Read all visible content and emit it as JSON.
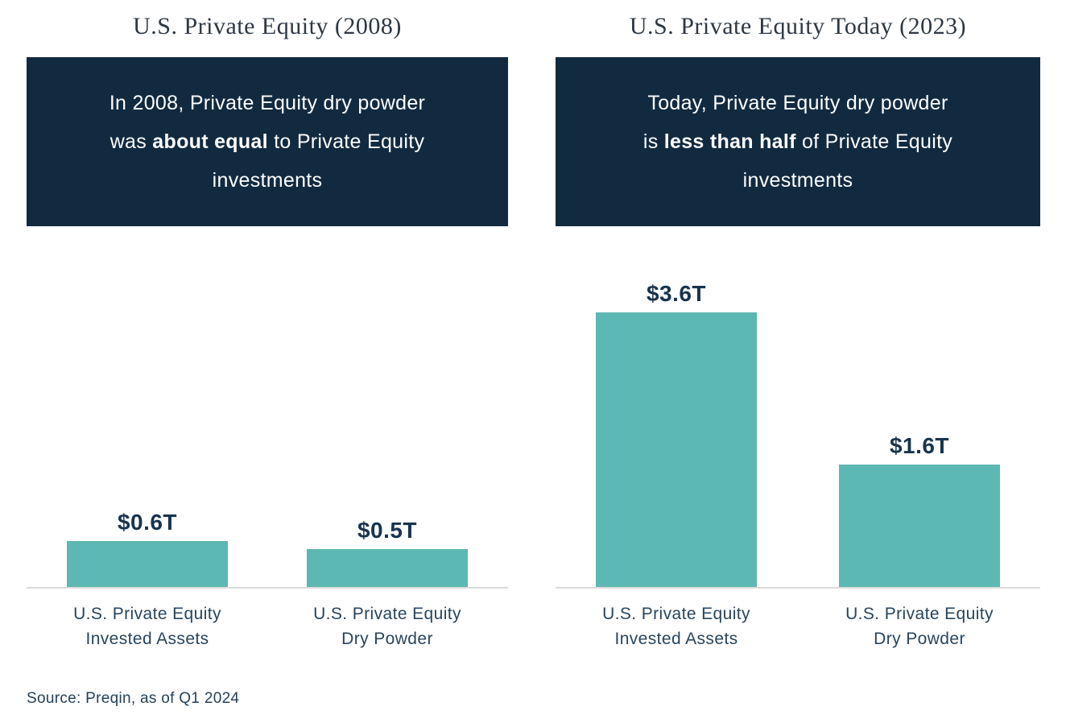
{
  "page": {
    "source_note": "Source: Preqin, as of Q1 2024"
  },
  "colors": {
    "callout_bg": "#112a40",
    "callout_text": "#ffffff",
    "bar_fill": "#5cb8b2",
    "title_text": "#2d3844",
    "value_label_text": "#18344e",
    "category_text": "#28455e",
    "source_text": "#24415b",
    "axis_line": "#dbdbdb"
  },
  "panels": [
    {
      "title": "U.S. Private Equity (2008)",
      "callout_lines": [
        [
          {
            "t": "In 2008, Private Equity dry powder"
          }
        ],
        [
          {
            "t": "was "
          },
          {
            "t": "about equal",
            "b": true
          },
          {
            "t": " to Private Equity"
          }
        ],
        [
          {
            "t": "investments"
          }
        ]
      ]
    },
    {
      "title": "U.S. Private Equity Today (2023)",
      "callout_lines": [
        [
          {
            "t": "Today, Private Equity dry powder"
          }
        ],
        [
          {
            "t": "is "
          },
          {
            "t": "less than half",
            "b": true
          },
          {
            "t": " of Private Equity"
          }
        ],
        [
          {
            "t": "investments"
          }
        ]
      ]
    }
  ],
  "chart_data": [
    {
      "type": "bar",
      "title": "U.S. Private Equity (2008)",
      "categories": [
        "U.S. Private Equity Invested Assets",
        "U.S. Private Equity Dry Powder"
      ],
      "category_lines": [
        [
          "U.S. Private Equity",
          "Invested Assets"
        ],
        [
          "U.S. Private Equity",
          "Dry Powder"
        ]
      ],
      "values": [
        0.6,
        0.5
      ],
      "value_labels": [
        "$0.6T",
        "$0.5T"
      ],
      "unit": "USD trillions",
      "ylim": [
        0,
        4
      ],
      "grid": false,
      "legend": "none",
      "annotation": "In 2008, Private Equity dry powder was about equal to Private Equity investments"
    },
    {
      "type": "bar",
      "title": "U.S. Private Equity Today (2023)",
      "categories": [
        "U.S. Private Equity Invested Assets",
        "U.S. Private Equity Dry Powder"
      ],
      "category_lines": [
        [
          "U.S. Private Equity",
          "Invested Assets"
        ],
        [
          "U.S. Private Equity",
          "Dry Powder"
        ]
      ],
      "values": [
        3.6,
        1.6
      ],
      "value_labels": [
        "$3.6T",
        "$1.6T"
      ],
      "unit": "USD trillions",
      "ylim": [
        0,
        4
      ],
      "grid": false,
      "legend": "none",
      "annotation": "Today, Private Equity dry powder is less than half of Private Equity investments"
    }
  ]
}
